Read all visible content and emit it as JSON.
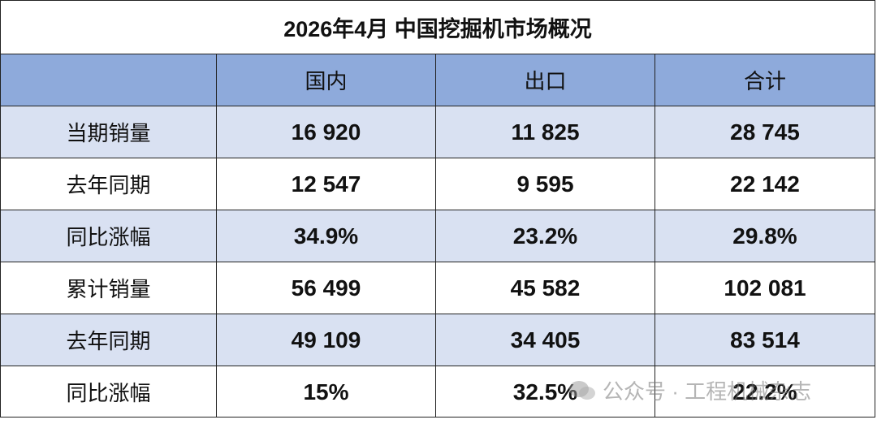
{
  "title": "2026年4月 中国挖掘机市场概况",
  "table": {
    "header": [
      "国内",
      "出口",
      "合计"
    ],
    "rows": [
      [
        "当期销量",
        "16 920",
        "11 825",
        "28 745"
      ],
      [
        "去年同期",
        "12 547",
        "9 595",
        "22 142"
      ],
      [
        "同比涨幅",
        "34.9%",
        "23.2%",
        "29.8%"
      ],
      [
        "累计销量",
        "56 499",
        "45 582",
        "102 081"
      ],
      [
        "去年同期",
        "49 109",
        "34 405",
        "83 514"
      ],
      [
        "同比涨幅",
        "15%",
        "32.5%",
        "22.2%"
      ]
    ]
  },
  "watermark": "公众号 · 工程机械杂志"
}
